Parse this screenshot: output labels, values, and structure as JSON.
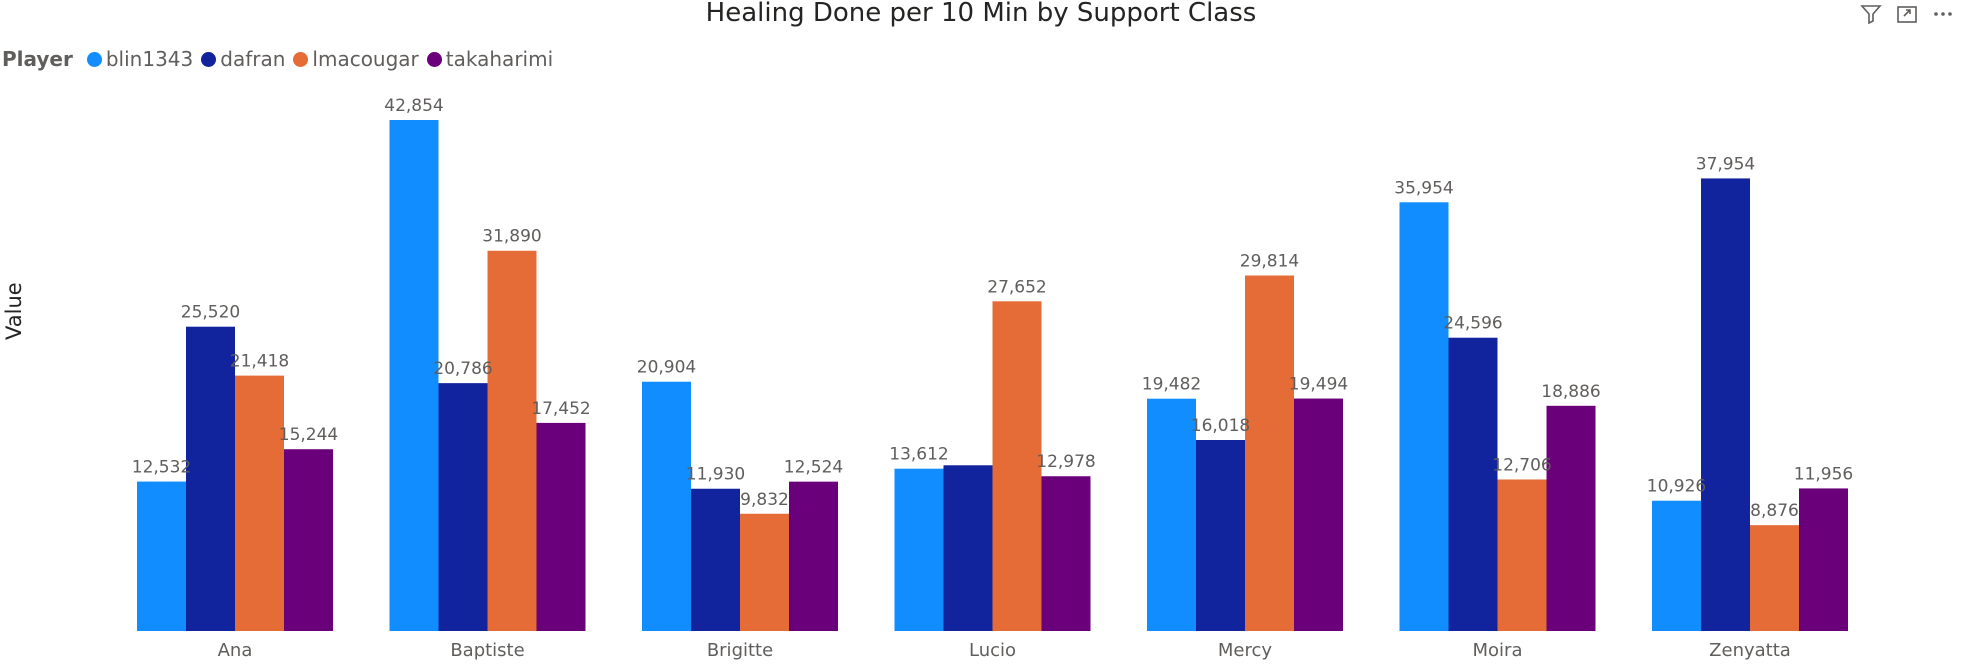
{
  "header": {
    "filter_icon": "filter-icon",
    "focus_icon": "focus-mode-icon",
    "more_icon": "more-options-icon"
  },
  "legend": {
    "title": "Player"
  },
  "chart_data": {
    "type": "bar",
    "title": "Healing Done per 10 Min by Support Class",
    "xlabel": "",
    "ylabel": "Value",
    "categories": [
      "Ana",
      "Baptiste",
      "Brigitte",
      "Lucio",
      "Mercy",
      "Moira",
      "Zenyatta"
    ],
    "series": [
      {
        "name": "blin1343",
        "color": "#118DFF",
        "values": [
          12532,
          42854,
          20904,
          13612,
          19482,
          35954,
          10926
        ]
      },
      {
        "name": "dafran",
        "color": "#12239E",
        "values": [
          25520,
          20786,
          11930,
          13898,
          16018,
          24596,
          37954
        ]
      },
      {
        "name": "lmacougar",
        "color": "#E66C37",
        "values": [
          21418,
          31890,
          9832,
          27652,
          29814,
          12706,
          8876
        ]
      },
      {
        "name": "takaharimi",
        "color": "#6B007B",
        "values": [
          15244,
          17452,
          12524,
          12978,
          19494,
          18886,
          11956
        ]
      }
    ],
    "data_labels": [
      [
        "12,532",
        "42,854",
        "20,904",
        "13,612",
        "19,482",
        "35,954",
        "10,926"
      ],
      [
        "25,520",
        "20,786",
        "11,930",
        "",
        "16,018",
        "24,596",
        "37,954"
      ],
      [
        "21,418",
        "31,890",
        "9,832",
        "27,652",
        "29,814",
        "12,706",
        "8,876"
      ],
      [
        "15,244",
        "17,452",
        "12,524",
        "12,978",
        "19,494",
        "18,886",
        "11,956"
      ]
    ],
    "ylim": [
      0,
      45000
    ],
    "grid": false,
    "legend_position": "top-left"
  }
}
